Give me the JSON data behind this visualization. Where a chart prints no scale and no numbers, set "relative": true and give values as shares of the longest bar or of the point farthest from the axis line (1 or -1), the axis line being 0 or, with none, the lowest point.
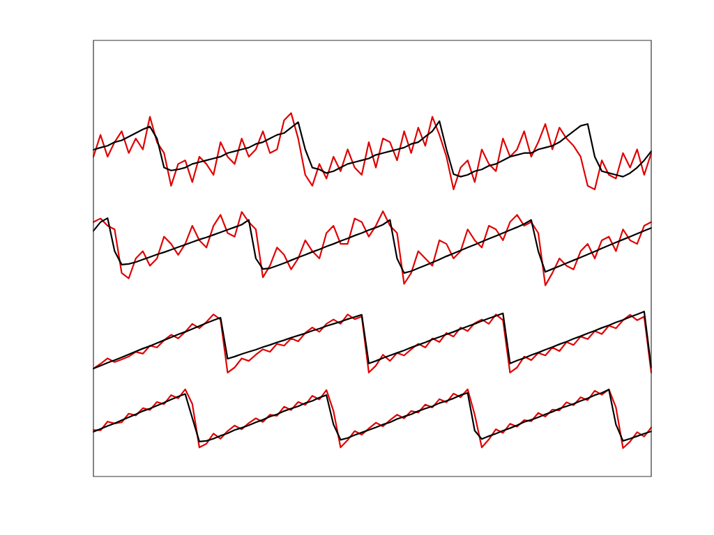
{
  "chart_data": {
    "type": "line",
    "relative": true,
    "marker": "none",
    "line_style": "solid",
    "categories": [
      null,
      null,
      null,
      null,
      null,
      null,
      null,
      null,
      null,
      null,
      null,
      null,
      null,
      null,
      null,
      null,
      null,
      null,
      null,
      null,
      null,
      null,
      null,
      null,
      null,
      null,
      null,
      null,
      null,
      null,
      null,
      null,
      null,
      null,
      null,
      null,
      null,
      null,
      null,
      null,
      null,
      null,
      null,
      null,
      null,
      null,
      null,
      null,
      null,
      null,
      null,
      null,
      null,
      null,
      null,
      null,
      null,
      null,
      null,
      null,
      null,
      null,
      null,
      null,
      null,
      null,
      null,
      null,
      null,
      null,
      null,
      null,
      null,
      null,
      null,
      null,
      null,
      null,
      null,
      null
    ],
    "series": [
      {
        "color": "#000000",
        "values": [
          0.899,
          0.905,
          0.91,
          0.92,
          0.925,
          0.935,
          0.945,
          0.955,
          0.963,
          0.93,
          0.85,
          0.842,
          0.845,
          0.85,
          0.86,
          0.865,
          0.87,
          0.875,
          0.88,
          0.89,
          0.895,
          0.9,
          0.905,
          0.915,
          0.92,
          0.93,
          0.94,
          0.945,
          0.96,
          0.975,
          0.9,
          0.85,
          0.845,
          0.835,
          0.84,
          0.85,
          0.86,
          0.865,
          0.87,
          0.875,
          0.885,
          0.89,
          0.895,
          0.9,
          0.905,
          0.915,
          0.92,
          0.935,
          0.95,
          0.978,
          0.9,
          0.832,
          0.825,
          0.83,
          0.84,
          0.845,
          0.855,
          0.86,
          0.87,
          0.88,
          0.885,
          0.89,
          0.89,
          0.9,
          0.905,
          0.91,
          0.92,
          0.935,
          0.95,
          0.965,
          0.97,
          0.88,
          0.84,
          0.835,
          0.83,
          0.825,
          0.835,
          0.85,
          0.87,
          0.895
        ]
      },
      {
        "color": "#e00000",
        "values": [
          0.88,
          0.94,
          0.88,
          0.92,
          0.95,
          0.89,
          0.93,
          0.9,
          0.99,
          0.92,
          0.89,
          0.8,
          0.86,
          0.87,
          0.81,
          0.88,
          0.86,
          0.83,
          0.92,
          0.88,
          0.86,
          0.93,
          0.88,
          0.9,
          0.95,
          0.89,
          0.9,
          0.98,
          1.0,
          0.93,
          0.83,
          0.8,
          0.86,
          0.82,
          0.88,
          0.84,
          0.9,
          0.85,
          0.83,
          0.92,
          0.85,
          0.93,
          0.92,
          0.87,
          0.95,
          0.89,
          0.96,
          0.91,
          0.99,
          0.94,
          0.88,
          0.79,
          0.85,
          0.87,
          0.81,
          0.9,
          0.86,
          0.84,
          0.93,
          0.88,
          0.9,
          0.95,
          0.88,
          0.92,
          0.97,
          0.9,
          0.96,
          0.93,
          0.91,
          0.88,
          0.8,
          0.79,
          0.87,
          0.83,
          0.82,
          0.89,
          0.85,
          0.9,
          0.83,
          0.89
        ]
      },
      {
        "color": "#000000",
        "values": [
          0.676,
          0.7,
          0.711,
          0.62,
          0.583,
          0.585,
          0.59,
          0.597,
          0.604,
          0.611,
          0.617,
          0.624,
          0.631,
          0.638,
          0.645,
          0.652,
          0.658,
          0.665,
          0.672,
          0.679,
          0.686,
          0.693,
          0.706,
          0.6,
          0.571,
          0.573,
          0.58,
          0.587,
          0.595,
          0.603,
          0.61,
          0.618,
          0.625,
          0.633,
          0.64,
          0.648,
          0.655,
          0.663,
          0.67,
          0.678,
          0.685,
          0.693,
          0.706,
          0.6,
          0.56,
          0.565,
          0.573,
          0.581,
          0.589,
          0.597,
          0.606,
          0.614,
          0.622,
          0.63,
          0.638,
          0.646,
          0.654,
          0.662,
          0.67,
          0.678,
          0.686,
          0.695,
          0.706,
          0.62,
          0.563,
          0.571,
          0.579,
          0.587,
          0.595,
          0.603,
          0.611,
          0.619,
          0.628,
          0.636,
          0.644,
          0.652,
          0.66,
          0.668,
          0.676,
          0.684
        ]
      },
      {
        "color": "#e00000",
        "values": [
          0.7,
          0.71,
          0.69,
          0.68,
          0.56,
          0.545,
          0.6,
          0.62,
          0.58,
          0.6,
          0.66,
          0.64,
          0.61,
          0.64,
          0.69,
          0.65,
          0.63,
          0.69,
          0.72,
          0.67,
          0.66,
          0.728,
          0.7,
          0.68,
          0.548,
          0.58,
          0.63,
          0.61,
          0.57,
          0.6,
          0.65,
          0.62,
          0.6,
          0.67,
          0.69,
          0.64,
          0.64,
          0.71,
          0.7,
          0.66,
          0.69,
          0.73,
          0.69,
          0.67,
          0.53,
          0.56,
          0.62,
          0.6,
          0.58,
          0.65,
          0.64,
          0.6,
          0.62,
          0.68,
          0.65,
          0.63,
          0.69,
          0.68,
          0.65,
          0.7,
          0.72,
          0.69,
          0.7,
          0.67,
          0.526,
          0.56,
          0.6,
          0.58,
          0.57,
          0.62,
          0.64,
          0.6,
          0.65,
          0.66,
          0.62,
          0.68,
          0.65,
          0.64,
          0.69,
          0.7
        ]
      },
      {
        "color": "#000000",
        "values": [
          0.297,
          0.305,
          0.313,
          0.32,
          0.328,
          0.336,
          0.344,
          0.352,
          0.359,
          0.367,
          0.375,
          0.383,
          0.391,
          0.398,
          0.406,
          0.414,
          0.422,
          0.43,
          0.437,
          0.324,
          0.33,
          0.337,
          0.343,
          0.349,
          0.356,
          0.362,
          0.369,
          0.375,
          0.382,
          0.388,
          0.394,
          0.401,
          0.407,
          0.414,
          0.42,
          0.426,
          0.433,
          0.439,
          0.445,
          0.311,
          0.318,
          0.326,
          0.333,
          0.34,
          0.347,
          0.355,
          0.362,
          0.369,
          0.377,
          0.384,
          0.391,
          0.398,
          0.406,
          0.413,
          0.42,
          0.428,
          0.435,
          0.442,
          0.449,
          0.311,
          0.319,
          0.326,
          0.334,
          0.341,
          0.349,
          0.356,
          0.364,
          0.371,
          0.379,
          0.386,
          0.394,
          0.401,
          0.409,
          0.416,
          0.424,
          0.431,
          0.439,
          0.446,
          0.454,
          0.3
        ]
      },
      {
        "color": "#e00000",
        "values": [
          0.297,
          0.31,
          0.325,
          0.315,
          0.322,
          0.33,
          0.343,
          0.338,
          0.36,
          0.355,
          0.375,
          0.39,
          0.38,
          0.398,
          0.42,
          0.408,
          0.425,
          0.446,
          0.432,
          0.286,
          0.3,
          0.325,
          0.318,
          0.335,
          0.35,
          0.343,
          0.365,
          0.36,
          0.38,
          0.372,
          0.395,
          0.41,
          0.398,
          0.42,
          0.432,
          0.42,
          0.446,
          0.433,
          0.44,
          0.286,
          0.305,
          0.335,
          0.318,
          0.34,
          0.333,
          0.35,
          0.365,
          0.355,
          0.38,
          0.37,
          0.395,
          0.385,
          0.41,
          0.4,
          0.422,
          0.432,
          0.42,
          0.446,
          0.43,
          0.286,
          0.3,
          0.33,
          0.32,
          0.34,
          0.333,
          0.355,
          0.345,
          0.37,
          0.362,
          0.385,
          0.378,
          0.4,
          0.392,
          0.415,
          0.408,
          0.43,
          0.445,
          0.43,
          0.44,
          0.286
        ]
      },
      {
        "color": "#000000",
        "values": [
          0.123,
          0.131,
          0.139,
          0.146,
          0.155,
          0.163,
          0.171,
          0.18,
          0.187,
          0.195,
          0.203,
          0.212,
          0.22,
          0.227,
          0.161,
          0.096,
          0.098,
          0.104,
          0.112,
          0.119,
          0.128,
          0.134,
          0.141,
          0.149,
          0.156,
          0.165,
          0.171,
          0.18,
          0.187,
          0.193,
          0.202,
          0.208,
          0.217,
          0.224,
          0.143,
          0.101,
          0.106,
          0.114,
          0.121,
          0.128,
          0.135,
          0.143,
          0.149,
          0.158,
          0.165,
          0.171,
          0.18,
          0.187,
          0.193,
          0.202,
          0.208,
          0.215,
          0.224,
          0.23,
          0.126,
          0.103,
          0.111,
          0.118,
          0.126,
          0.133,
          0.141,
          0.15,
          0.156,
          0.163,
          0.171,
          0.178,
          0.187,
          0.193,
          0.2,
          0.208,
          0.215,
          0.224,
          0.23,
          0.239,
          0.143,
          0.098,
          0.104,
          0.111,
          0.118,
          0.124
        ]
      },
      {
        "color": "#e00000",
        "values": [
          0.128,
          0.127,
          0.151,
          0.146,
          0.149,
          0.173,
          0.168,
          0.188,
          0.183,
          0.205,
          0.199,
          0.224,
          0.215,
          0.24,
          0.2,
          0.08,
          0.09,
          0.118,
          0.104,
          0.125,
          0.14,
          0.13,
          0.147,
          0.16,
          0.15,
          0.17,
          0.167,
          0.192,
          0.183,
          0.205,
          0.197,
          0.222,
          0.212,
          0.238,
          0.18,
          0.08,
          0.1,
          0.125,
          0.115,
          0.132,
          0.148,
          0.138,
          0.155,
          0.17,
          0.16,
          0.18,
          0.176,
          0.198,
          0.19,
          0.213,
          0.204,
          0.228,
          0.218,
          0.24,
          0.17,
          0.08,
          0.102,
          0.13,
          0.12,
          0.145,
          0.137,
          0.155,
          0.152,
          0.175,
          0.165,
          0.184,
          0.182,
          0.204,
          0.196,
          0.218,
          0.21,
          0.236,
          0.225,
          0.24,
          0.19,
          0.078,
          0.096,
          0.122,
          0.11,
          0.135
        ]
      }
    ]
  }
}
